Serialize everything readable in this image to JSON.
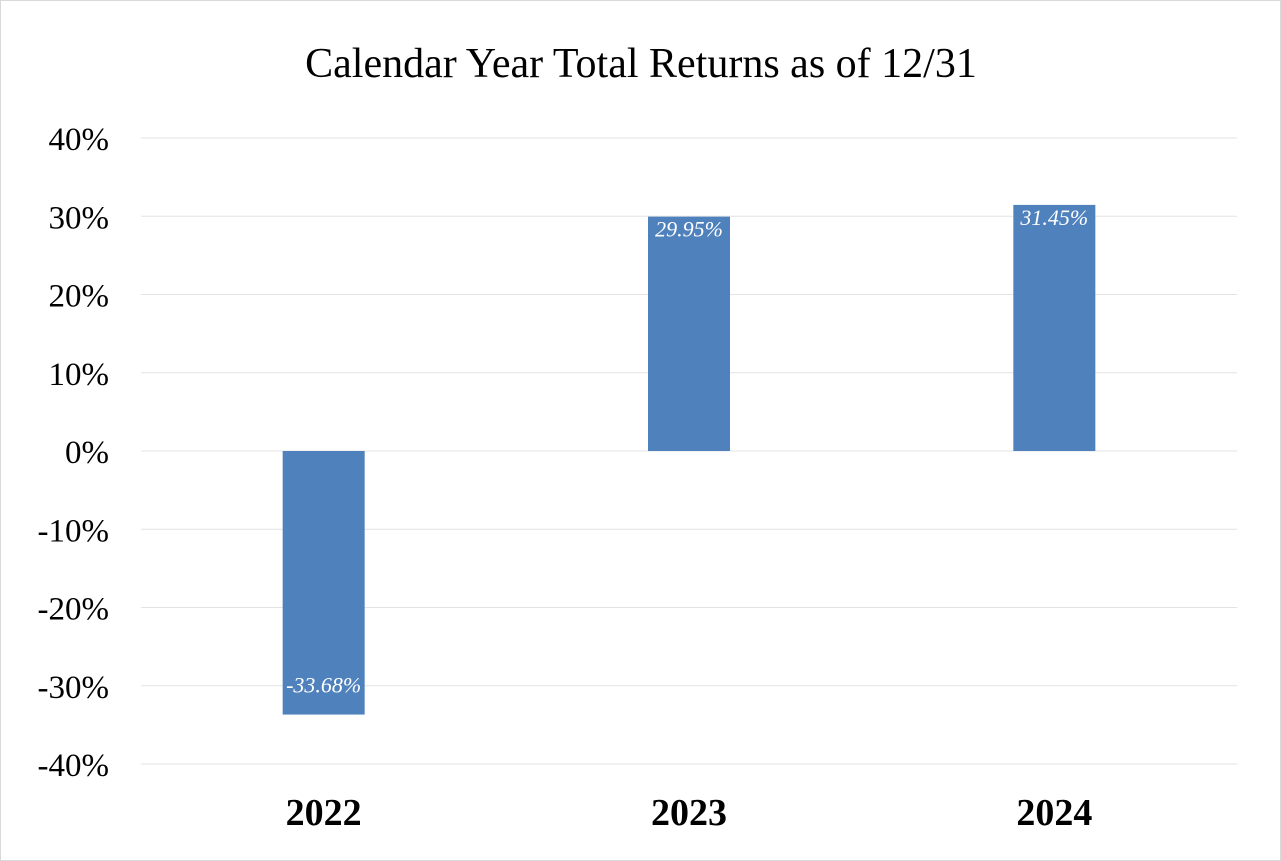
{
  "chart_data": {
    "type": "bar",
    "title": "Calendar Year Total Returns as of 12/31",
    "xlabel": "",
    "ylabel": "",
    "categories": [
      "2022",
      "2023",
      "2024"
    ],
    "values": [
      -33.68,
      29.95,
      31.45
    ],
    "data_labels": [
      "-33.68%",
      "29.95%",
      "31.45%"
    ],
    "ylim": [
      -40,
      40
    ],
    "y_ticks": [
      40,
      30,
      20,
      10,
      0,
      -10,
      -20,
      -30,
      -40
    ],
    "y_tick_labels": [
      "40%",
      "30%",
      "20%",
      "10%",
      "0%",
      "-10%",
      "-20%",
      "-30%",
      "-40%"
    ],
    "grid": true,
    "legend": "none",
    "bar_color": "#4f81bd",
    "data_label_color": "#ffffff"
  }
}
